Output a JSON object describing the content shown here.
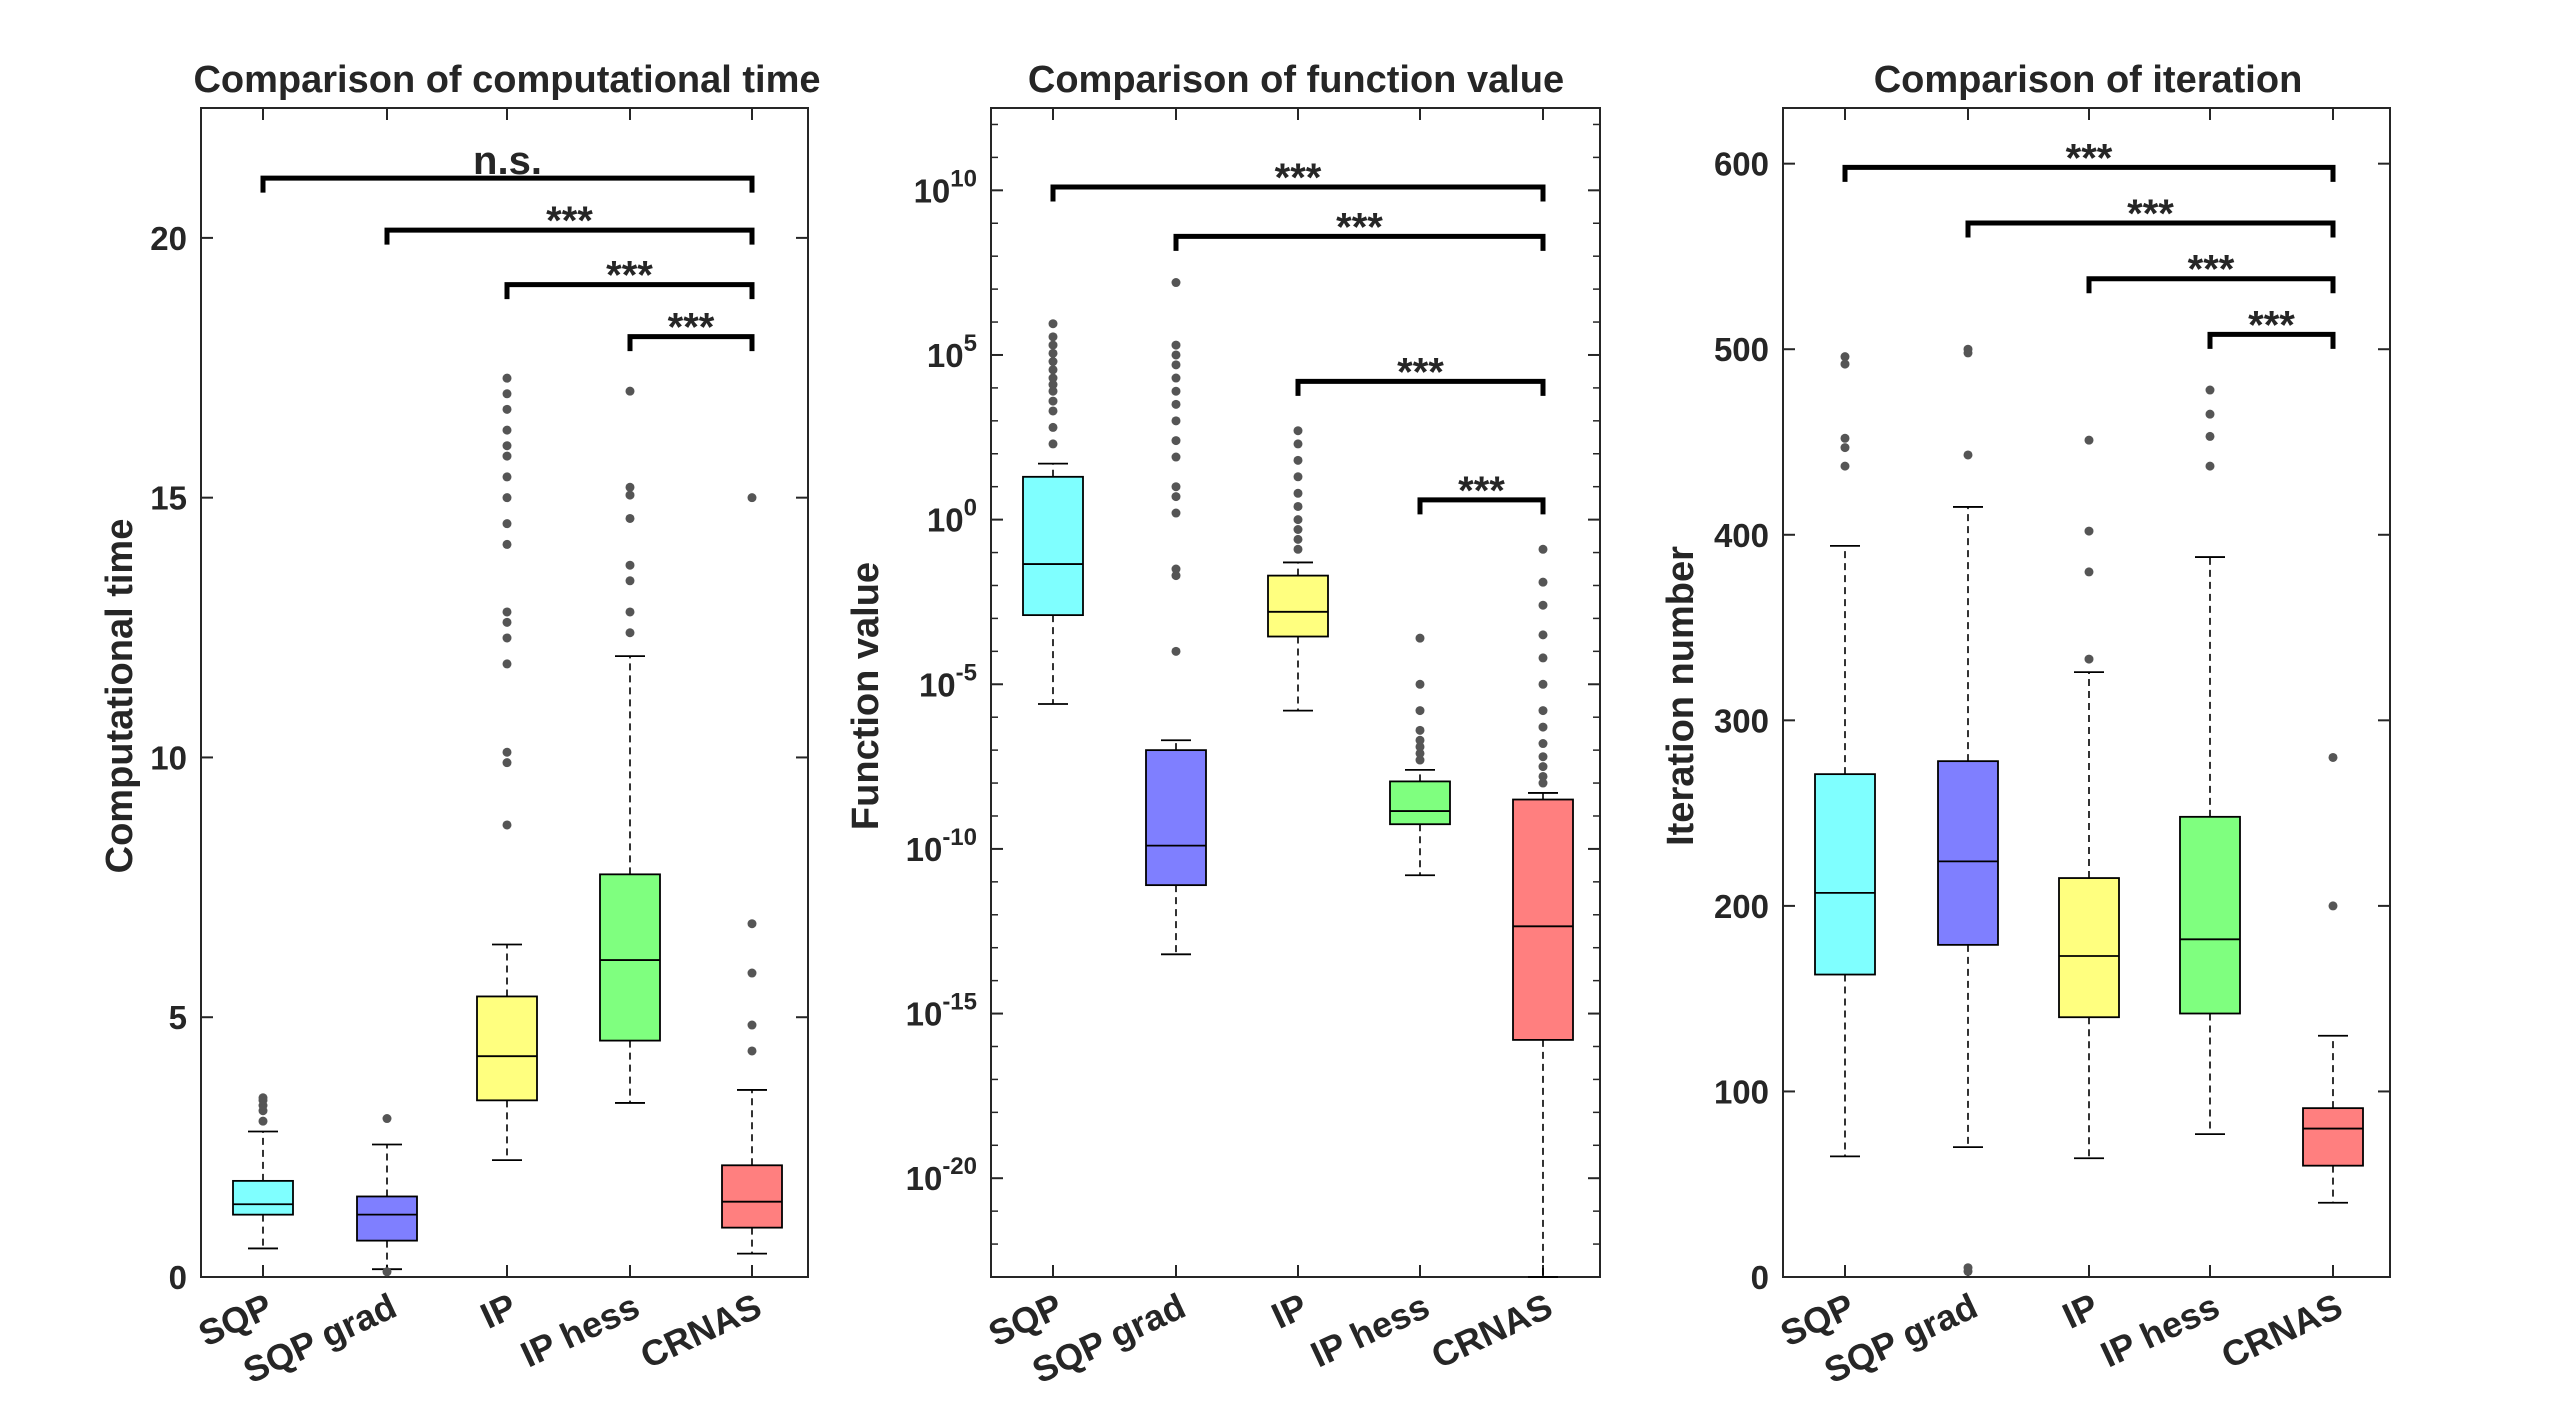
{
  "chart_data": [
    {
      "type": "box",
      "title": "Comparison of computational time",
      "ylabel": "Computational time",
      "xlabel": "",
      "scale": "linear",
      "ylim": [
        0,
        22.5
      ],
      "yticks": [
        0,
        5,
        10,
        15,
        20
      ],
      "ytick_labels": [
        "0",
        "5",
        "10",
        "15",
        "20"
      ],
      "categories": [
        "SQP",
        "SQP grad",
        "IP",
        "IP hess",
        "CRNAS"
      ],
      "colors": [
        "#7fffff",
        "#7f7fff",
        "#ffff7f",
        "#7fff7f",
        "#ff7f7f"
      ],
      "boxes": [
        {
          "min": 0.55,
          "q1": 1.2,
          "median": 1.4,
          "q3": 1.85,
          "max": 2.8,
          "outliers": [
            3.0,
            3.2,
            3.3,
            3.4,
            3.45
          ]
        },
        {
          "min": 0.15,
          "q1": 0.7,
          "median": 1.2,
          "q3": 1.55,
          "max": 2.55,
          "outliers": [
            0.1,
            3.05
          ]
        },
        {
          "min": 2.25,
          "q1": 3.4,
          "median": 4.25,
          "q3": 5.4,
          "max": 6.4,
          "outliers": [
            8.7,
            9.9,
            10.1,
            11.8,
            12.3,
            12.6,
            12.8,
            14.1,
            14.5,
            15.0,
            15.4,
            15.8,
            16.0,
            16.3,
            16.7,
            17.0,
            17.3
          ]
        },
        {
          "min": 3.35,
          "q1": 4.55,
          "median": 6.1,
          "q3": 7.75,
          "max": 11.95,
          "outliers": [
            12.4,
            12.8,
            13.4,
            13.7,
            14.6,
            15.05,
            15.2,
            17.05
          ]
        },
        {
          "min": 0.45,
          "q1": 0.95,
          "median": 1.45,
          "q3": 2.15,
          "max": 3.6,
          "outliers": [
            4.35,
            4.85,
            5.85,
            6.8,
            15.0
          ]
        }
      ],
      "significance": [
        {
          "from": "SQP",
          "to": "CRNAS",
          "label": "n.s.",
          "level": 21.15
        },
        {
          "from": "SQP grad",
          "to": "CRNAS",
          "label": "***",
          "level": 20.15
        },
        {
          "from": "IP",
          "to": "CRNAS",
          "label": "***",
          "level": 19.1
        },
        {
          "from": "IP hess",
          "to": "CRNAS",
          "label": "***",
          "level": 18.1
        }
      ]
    },
    {
      "type": "box",
      "title": "Comparison of function value",
      "ylabel": "Function value",
      "xlabel": "",
      "scale": "log",
      "ylim_log10": [
        -23,
        12.5
      ],
      "yticks_log10": [
        -20,
        -15,
        -10,
        -5,
        0,
        5,
        10
      ],
      "ytick_labels": [
        "10^-20",
        "10^-15",
        "10^-10",
        "10^-5",
        "10^0",
        "10^5",
        "10^10"
      ],
      "categories": [
        "SQP",
        "SQP grad",
        "IP",
        "IP hess",
        "CRNAS"
      ],
      "colors": [
        "#7fffff",
        "#7f7fff",
        "#ffff7f",
        "#7fff7f",
        "#ff7f7f"
      ],
      "boxes_log10": [
        {
          "min": -5.6,
          "q1": -2.9,
          "median": -1.35,
          "q3": 1.3,
          "max": 1.7,
          "outliers": [
            2.3,
            2.8,
            3.3,
            3.6,
            3.9,
            4.1,
            4.3,
            4.55,
            4.8,
            5.05,
            5.3,
            5.55,
            5.95
          ]
        },
        {
          "min": -13.2,
          "q1": -11.1,
          "median": -9.9,
          "q3": -7.0,
          "max": -6.7,
          "outliers": [
            -4.0,
            -1.7,
            -1.5,
            0.2,
            0.7,
            1.0,
            1.9,
            2.4,
            3.0,
            3.5,
            3.9,
            4.3,
            4.7,
            5.0,
            5.3,
            7.2
          ]
        },
        {
          "min": -5.8,
          "q1": -3.55,
          "median": -2.8,
          "q3": -1.7,
          "max": -1.3,
          "outliers": [
            -0.9,
            -0.6,
            -0.3,
            0.0,
            0.4,
            0.8,
            1.3,
            1.8,
            2.3,
            2.7
          ]
        },
        {
          "min": -10.8,
          "q1": -9.25,
          "median": -8.85,
          "q3": -7.95,
          "max": -7.6,
          "outliers": [
            -7.3,
            -7.1,
            -6.9,
            -6.7,
            -6.4,
            -5.8,
            -5.0,
            -3.6
          ]
        },
        {
          "min": -23.0,
          "q1": -15.8,
          "median": -12.35,
          "q3": -8.5,
          "max": -8.3,
          "outliers": [
            -8.0,
            -7.8,
            -7.5,
            -7.2,
            -6.8,
            -6.3,
            -5.8,
            -5.0,
            -4.2,
            -3.5,
            -2.6,
            -1.9,
            -0.9
          ]
        }
      ],
      "significance": [
        {
          "from": "SQP",
          "to": "CRNAS",
          "label": "***",
          "level_log10": 10.1
        },
        {
          "from": "SQP grad",
          "to": "CRNAS",
          "label": "***",
          "level_log10": 8.6
        },
        {
          "from": "IP",
          "to": "CRNAS",
          "label": "***",
          "level_log10": 4.2
        },
        {
          "from": "IP hess",
          "to": "CRNAS",
          "label": "***",
          "level_log10": 0.6
        }
      ]
    },
    {
      "type": "box",
      "title": "Comparison of iteration",
      "ylabel": "Iteration number",
      "xlabel": "",
      "scale": "linear",
      "ylim": [
        0,
        630
      ],
      "yticks": [
        0,
        100,
        200,
        300,
        400,
        500,
        600
      ],
      "ytick_labels": [
        "0",
        "100",
        "200",
        "300",
        "400",
        "500",
        "600"
      ],
      "categories": [
        "SQP",
        "SQP grad",
        "IP",
        "IP hess",
        "CRNAS"
      ],
      "colors": [
        "#7fffff",
        "#7f7fff",
        "#ffff7f",
        "#7fff7f",
        "#ff7f7f"
      ],
      "boxes": [
        {
          "min": 65,
          "q1": 163,
          "median": 207,
          "q3": 271,
          "max": 394,
          "outliers": [
            437,
            447,
            452,
            492,
            496
          ]
        },
        {
          "min": 70,
          "q1": 179,
          "median": 224,
          "q3": 278,
          "max": 415,
          "outliers": [
            3,
            5,
            443,
            498,
            500
          ]
        },
        {
          "min": 64,
          "q1": 140,
          "median": 173,
          "q3": 215,
          "max": 326,
          "outliers": [
            333,
            380,
            402,
            451
          ]
        },
        {
          "min": 77,
          "q1": 142,
          "median": 182,
          "q3": 248,
          "max": 388,
          "outliers": [
            437,
            453,
            465,
            478
          ]
        },
        {
          "min": 40,
          "q1": 60,
          "median": 80,
          "q3": 91,
          "max": 130,
          "outliers": [
            200,
            280
          ]
        }
      ],
      "significance": [
        {
          "from": "SQP",
          "to": "CRNAS",
          "label": "***",
          "level": 598
        },
        {
          "from": "SQP grad",
          "to": "CRNAS",
          "label": "***",
          "level": 568
        },
        {
          "from": "IP",
          "to": "CRNAS",
          "label": "***",
          "level": 538
        },
        {
          "from": "IP hess",
          "to": "CRNAS",
          "label": "***",
          "level": 508
        }
      ]
    }
  ]
}
